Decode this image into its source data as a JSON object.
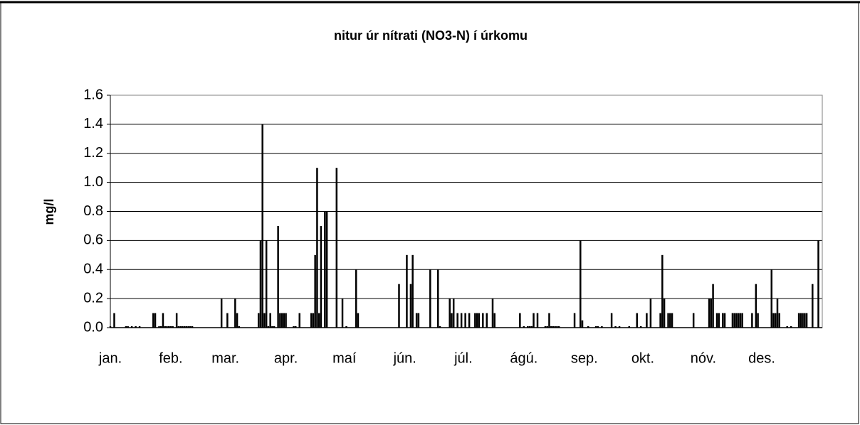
{
  "chart_data": {
    "type": "bar",
    "title": "nitur úr nítrati (NO3-N) í úrkomu",
    "y_label": "mg/l",
    "color": "#000000",
    "grid": true,
    "xlim": [
      1,
      366
    ],
    "xticks": [
      {
        "value": 1,
        "label": "jan."
      },
      {
        "value": 32,
        "label": "feb."
      },
      {
        "value": 60,
        "label": "mar."
      },
      {
        "value": 91,
        "label": "apr."
      },
      {
        "value": 121,
        "label": "maí"
      },
      {
        "value": 152,
        "label": "jún."
      },
      {
        "value": 182,
        "label": "júl."
      },
      {
        "value": 213,
        "label": "ágú."
      },
      {
        "value": 244,
        "label": "sep."
      },
      {
        "value": 274,
        "label": "okt."
      },
      {
        "value": 305,
        "label": "nóv."
      },
      {
        "value": 335,
        "label": "des."
      }
    ],
    "ylim": [
      0,
      1.6
    ],
    "yticks": [
      {
        "value": 0,
        "label": "0.0"
      },
      0.2,
      0.4,
      0.6,
      0.8,
      {
        "value": 1,
        "label": "1.0"
      },
      1.2,
      1.4,
      1.6
    ],
    "x": [
      1,
      3,
      9,
      10,
      12,
      14,
      16,
      23,
      24,
      26,
      27,
      28,
      29,
      30,
      31,
      32,
      33,
      35,
      36,
      37,
      38,
      39,
      40,
      41,
      42,
      43,
      58,
      61,
      65,
      66,
      67,
      77,
      78,
      79,
      80,
      81,
      82,
      83,
      84,
      85,
      87,
      88,
      89,
      90,
      91,
      95,
      96,
      98,
      104,
      105,
      106,
      107,
      108,
      109,
      111,
      112,
      117,
      120,
      122,
      127,
      128,
      149,
      153,
      155,
      156,
      158,
      159,
      165,
      169,
      170,
      175,
      176,
      177,
      179,
      181,
      183,
      185,
      188,
      189,
      190,
      192,
      194,
      197,
      198,
      211,
      213,
      215,
      216,
      217,
      218,
      220,
      224,
      225,
      226,
      227,
      228,
      229,
      230,
      231,
      239,
      242,
      243,
      246,
      250,
      251,
      253,
      258,
      260,
      262,
      267,
      271,
      273,
      276,
      278,
      283,
      284,
      285,
      287,
      288,
      289,
      300,
      308,
      309,
      310,
      312,
      313,
      315,
      316,
      320,
      321,
      322,
      323,
      324,
      325,
      330,
      332,
      333,
      340,
      341,
      342,
      343,
      344,
      348,
      350,
      354,
      355,
      356,
      357,
      358,
      361,
      364
    ],
    "values": [
      0.01,
      0.1,
      0.01,
      0.01,
      0.01,
      0.01,
      0.01,
      0.1,
      0.1,
      0.01,
      0.01,
      0.1,
      0.01,
      0.01,
      0.01,
      0.01,
      0.01,
      0.1,
      0.01,
      0.01,
      0.01,
      0.01,
      0.01,
      0.01,
      0.01,
      0.01,
      0.2,
      0.1,
      0.2,
      0.1,
      0.01,
      0.1,
      0.6,
      1.4,
      0.1,
      0.6,
      0.01,
      0.1,
      0.01,
      0.01,
      0.7,
      0.1,
      0.1,
      0.1,
      0.1,
      0.01,
      0.01,
      0.1,
      0.1,
      0.1,
      0.5,
      1.1,
      0.1,
      0.7,
      0.8,
      0.8,
      1.1,
      0.2,
      0.01,
      0.4,
      0.1,
      0.3,
      0.5,
      0.3,
      0.5,
      0.1,
      0.1,
      0.4,
      0.4,
      0.01,
      0.2,
      0.1,
      0.2,
      0.1,
      0.1,
      0.1,
      0.1,
      0.1,
      0.1,
      0.1,
      0.1,
      0.1,
      0.2,
      0.1,
      0.1,
      0.01,
      0.01,
      0.01,
      0.01,
      0.1,
      0.1,
      0.01,
      0.01,
      0.1,
      0.01,
      0.01,
      0.01,
      0.01,
      0.01,
      0.1,
      0.6,
      0.05,
      0.01,
      0.01,
      0.01,
      0.01,
      0.1,
      0.01,
      0.01,
      0.01,
      0.1,
      0.01,
      0.1,
      0.2,
      0.1,
      0.5,
      0.2,
      0.1,
      0.1,
      0.1,
      0.1,
      0.2,
      0.2,
      0.3,
      0.1,
      0.1,
      0.1,
      0.1,
      0.1,
      0.1,
      0.1,
      0.1,
      0.1,
      0.1,
      0.1,
      0.3,
      0.1,
      0.4,
      0.1,
      0.1,
      0.2,
      0.1,
      0.01,
      0.01,
      0.1,
      0.1,
      0.1,
      0.1,
      0.1,
      0.3,
      0.6
    ]
  }
}
